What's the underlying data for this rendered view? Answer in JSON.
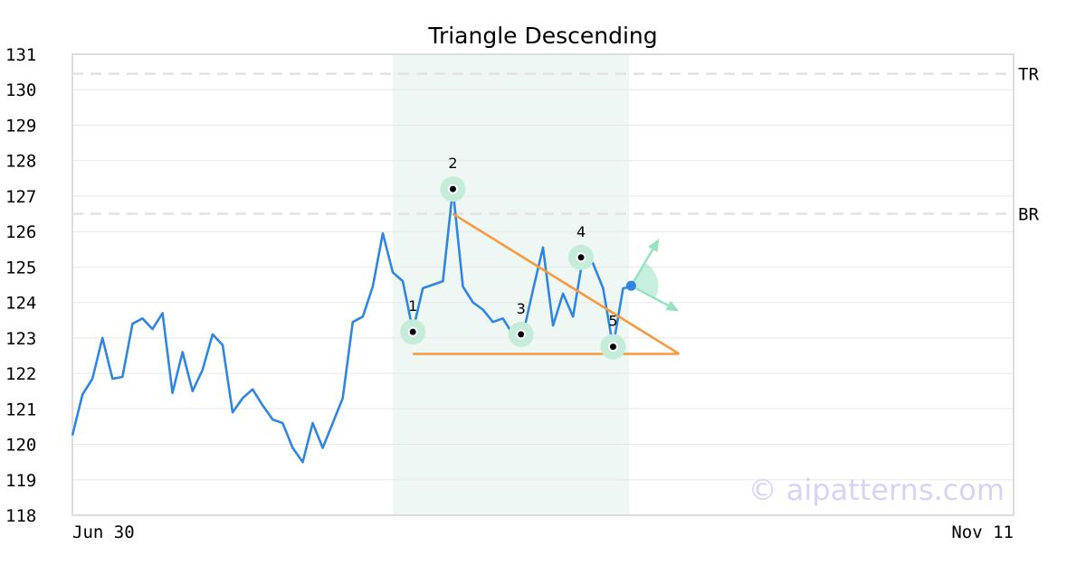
{
  "chart_data": {
    "type": "line",
    "title": "Triangle Descending",
    "xlabel": "",
    "ylabel": "",
    "ylim": [
      118,
      131
    ],
    "yticks": [
      118,
      119,
      120,
      121,
      122,
      123,
      124,
      125,
      126,
      127,
      128,
      129,
      130,
      131
    ],
    "x_tick_labels": [
      "Jun 30",
      "Nov 11"
    ],
    "grid": true,
    "legend": "none",
    "series": [
      {
        "color": "#2f86e0",
        "values": [
          120.25,
          121.4,
          121.85,
          123.0,
          121.85,
          121.9,
          123.4,
          123.55,
          123.25,
          123.7,
          121.45,
          122.6,
          121.5,
          122.1,
          123.1,
          122.8,
          120.9,
          121.3,
          121.55,
          121.1,
          120.7,
          120.6,
          119.9,
          119.5,
          120.6,
          119.9,
          120.6,
          121.3,
          123.45,
          123.6,
          124.45,
          125.95,
          124.85,
          124.6,
          123.2,
          124.4,
          124.5,
          124.6,
          127.2,
          124.45,
          124.0,
          123.8,
          123.45,
          123.55,
          123.1,
          123.1,
          124.35,
          125.55,
          123.35,
          124.25,
          123.6,
          125.3,
          125.1,
          124.4,
          122.75,
          124.4,
          124.45
        ]
      }
    ],
    "highlight_x_range": [
      32,
      55.6
    ],
    "reference_lines": [
      {
        "label": "TR",
        "y": 130.45,
        "color": "#e2e2e2"
      },
      {
        "label": "BR",
        "y": 126.5,
        "color": "#e2e2e2"
      }
    ],
    "pattern_points": [
      {
        "label": "1",
        "x": 34,
        "y": 123.17
      },
      {
        "label": "2",
        "x": 38,
        "y": 127.2
      },
      {
        "label": "3",
        "x": 44.8,
        "y": 123.1
      },
      {
        "label": "4",
        "x": 50.8,
        "y": 125.27
      },
      {
        "label": "5",
        "x": 54,
        "y": 122.75
      }
    ],
    "trendlines": [
      {
        "color": "#f7993f",
        "points": [
          [
            38,
            126.5
          ],
          [
            60.6,
            122.55
          ]
        ]
      },
      {
        "color": "#f7993f",
        "points": [
          [
            34,
            122.55
          ],
          [
            60.6,
            122.55
          ]
        ]
      }
    ],
    "breakout_marker": {
      "x": 55.8,
      "y": 124.47,
      "color": "#2f86e0"
    },
    "breakout_arrows": {
      "color": "#97e3c1",
      "up_target": [
        58.6,
        125.8
      ],
      "down_target": [
        60.6,
        123.75
      ]
    },
    "watermark": "© aipatterns.com",
    "colors": {
      "line": "#2f86e0",
      "highlight": "#eef7f3",
      "point_halo": "#c4ecd9",
      "trend": "#f7993f",
      "grid": "#e8e8e8",
      "frame": "#dcdcdc"
    }
  }
}
